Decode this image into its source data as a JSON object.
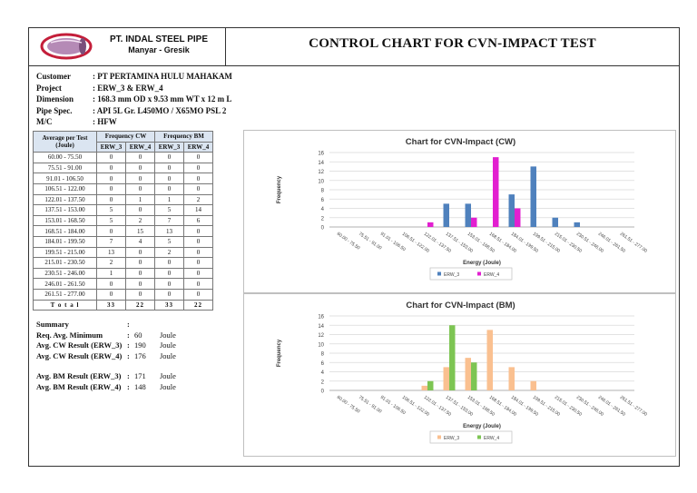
{
  "header": {
    "company_name": "PT. INDAL STEEL PIPE",
    "company_location": "Manyar - Gresik",
    "title": "CONTROL CHART FOR CVN-IMPACT TEST"
  },
  "info": [
    {
      "label": "Customer",
      "value": ": PT PERTAMINA HULU MAHAKAM"
    },
    {
      "label": "Project",
      "value": ": ERW_3 & ERW_4"
    },
    {
      "label": "Dimension",
      "value": ": 168.3 mm OD x 9.53 mm WT x 12 m L"
    },
    {
      "label": "Pipe Spec.",
      "value": ": API 5L Gr. L450MO / X65MO PSL 2"
    },
    {
      "label": "M/C",
      "value": ": HFW"
    }
  ],
  "table": {
    "col_range": "Average per Test (Joule)",
    "group_cw": "Frequency CW",
    "group_bm": "Frequency BM",
    "sub": [
      "ERW_3",
      "ERW_4",
      "ERW_3",
      "ERW_4"
    ],
    "rows": [
      [
        "60.00 - 75.50",
        "0",
        "0",
        "0",
        "0"
      ],
      [
        "75.51 - 91.00",
        "0",
        "0",
        "0",
        "0"
      ],
      [
        "91.01 - 106.50",
        "0",
        "0",
        "0",
        "0"
      ],
      [
        "106.51 - 122.00",
        "0",
        "0",
        "0",
        "0"
      ],
      [
        "122.01 - 137.50",
        "0",
        "1",
        "1",
        "2"
      ],
      [
        "137.51 - 153.00",
        "5",
        "0",
        "5",
        "14"
      ],
      [
        "153.01 - 168.50",
        "5",
        "2",
        "7",
        "6"
      ],
      [
        "168.51 - 184.00",
        "0",
        "15",
        "13",
        "0"
      ],
      [
        "184.01 - 199.50",
        "7",
        "4",
        "5",
        "0"
      ],
      [
        "199.51 - 215.00",
        "13",
        "0",
        "2",
        "0"
      ],
      [
        "215.01 - 230.50",
        "2",
        "0",
        "0",
        "0"
      ],
      [
        "230.51 - 246.00",
        "1",
        "0",
        "0",
        "0"
      ],
      [
        "246.01 - 261.50",
        "0",
        "0",
        "0",
        "0"
      ],
      [
        "261.51 - 277.00",
        "0",
        "0",
        "0",
        "0"
      ]
    ],
    "total": [
      "T o t a l",
      "33",
      "22",
      "33",
      "22"
    ]
  },
  "summary": {
    "heading": "Summary",
    "heading_colon": ":",
    "items": [
      {
        "label": "Req. Avg. Minimum",
        "colon": ":",
        "value": "60",
        "unit": "Joule"
      },
      {
        "label": "Avg. CW Result (ERW_3)",
        "colon": ":",
        "value": "190",
        "unit": "Joule"
      },
      {
        "label": "Avg. CW Result (ERW_4)",
        "colon": ":",
        "value": "176",
        "unit": "Joule"
      },
      {
        "label": "Avg. BM Result (ERW_3)",
        "colon": ":",
        "value": "171",
        "unit": "Joule"
      },
      {
        "label": "Avg. BM Result (ERW_4)",
        "colon": ":",
        "value": "148",
        "unit": "Joule"
      }
    ]
  },
  "colors": {
    "cw_erw3": "#4f81bd",
    "cw_erw4": "#e21fd0",
    "bm_erw3": "#fac090",
    "bm_erw4": "#7dc553",
    "grid": "#d9d9d9",
    "logo_ring": "#c41e3a",
    "logo_body": "#b58ab6"
  },
  "chart_data": [
    {
      "type": "bar",
      "title": "Chart for CVN-Impact (CW)",
      "xlabel": "Energy (Joule)",
      "ylabel": "Frequency",
      "ylim": [
        0,
        16
      ],
      "yticks": [
        0,
        2,
        4,
        6,
        8,
        10,
        12,
        14,
        16
      ],
      "grid": true,
      "legend": "bottom",
      "categories": [
        "60.00 - 75.50",
        "75.51 - 91.00",
        "91.01 - 106.50",
        "106.51 - 122.00",
        "122.01 - 137.50",
        "137.51 - 153.00",
        "153.01 - 168.50",
        "168.51 - 184.00",
        "184.01 - 199.50",
        "199.51 - 215.00",
        "215.01 - 230.50",
        "230.51 - 246.00",
        "246.01 - 261.50",
        "261.51 - 277.00"
      ],
      "series": [
        {
          "name": "ERW_3",
          "color": "#4f81bd",
          "values": [
            0,
            0,
            0,
            0,
            0,
            5,
            5,
            0,
            7,
            13,
            2,
            1,
            0,
            0
          ]
        },
        {
          "name": "ERW_4",
          "color": "#e21fd0",
          "values": [
            0,
            0,
            0,
            0,
            1,
            0,
            2,
            15,
            4,
            0,
            0,
            0,
            0,
            0
          ]
        }
      ]
    },
    {
      "type": "bar",
      "title": "Chart for CVN-Impact (BM)",
      "xlabel": "Energy (Joule)",
      "ylabel": "Frequency",
      "ylim": [
        0,
        16
      ],
      "yticks": [
        0,
        2,
        4,
        6,
        8,
        10,
        12,
        14,
        16
      ],
      "grid": true,
      "legend": "bottom",
      "categories": [
        "60.00 - 75.50",
        "75.51 - 91.00",
        "91.01 - 106.50",
        "106.51 - 122.00",
        "122.01 - 137.50",
        "137.51 - 153.00",
        "153.01 - 168.50",
        "168.51 - 184.00",
        "184.01 - 199.50",
        "199.51 - 215.00",
        "215.01 - 230.50",
        "230.51 - 246.00",
        "246.01 - 261.50",
        "261.51 - 277.00"
      ],
      "series": [
        {
          "name": "ERW_3",
          "color": "#fac090",
          "values": [
            0,
            0,
            0,
            0,
            1,
            5,
            7,
            13,
            5,
            2,
            0,
            0,
            0,
            0
          ]
        },
        {
          "name": "ERW_4",
          "color": "#7dc553",
          "values": [
            0,
            0,
            0,
            0,
            2,
            14,
            6,
            0,
            0,
            0,
            0,
            0,
            0,
            0
          ]
        }
      ]
    }
  ]
}
